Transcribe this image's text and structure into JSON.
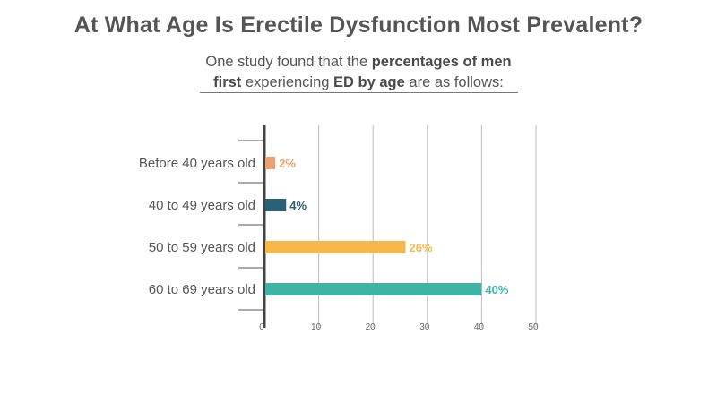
{
  "header": {
    "title": "At What Age Is Erectile Dysfunction Most Prevalent?",
    "subtitle_line1_part1": "One study found that the ",
    "subtitle_line1_bold": "percentages of men",
    "subtitle_line2_bold1": "first",
    "subtitle_line2_part2": " experiencing ",
    "subtitle_line2_bold2": "ED by age",
    "subtitle_line2_part3": " are as follows:"
  },
  "chart_data": {
    "type": "bar",
    "orientation": "horizontal",
    "categories": [
      "Before 40 years old",
      "40 to 49 years old",
      "50 to 59 years old",
      "60 to 69 years old"
    ],
    "values": [
      2,
      4,
      26,
      40
    ],
    "value_labels": [
      "2%",
      "4%",
      "26%",
      "40%"
    ],
    "colors": [
      "#f0a070",
      "#2b6075",
      "#f7b84b",
      "#3fb3a6"
    ],
    "xlim": [
      0,
      50
    ],
    "xticks": [
      0,
      10,
      20,
      30,
      40,
      50
    ],
    "xtick_labels": [
      "0",
      "10",
      "20",
      "30",
      "40",
      "50"
    ],
    "grid": true
  }
}
